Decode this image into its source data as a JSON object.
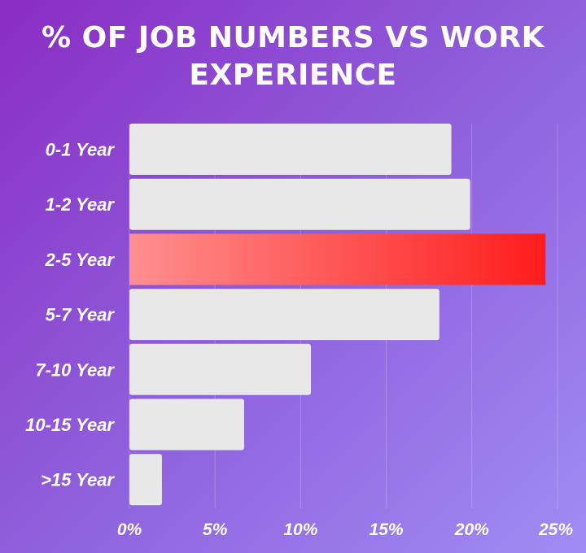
{
  "chart_data": {
    "type": "bar",
    "orientation": "horizontal",
    "title_lines": [
      "% OF JOB NUMBERS VS WORK",
      "EXPERIENCE"
    ],
    "categories": [
      "0-1 Year",
      "1-2 Year",
      "2-5 Year",
      "5-7 Year",
      "7-10 Year",
      "10-15 Year",
      ">15 Year"
    ],
    "values": [
      18.8,
      19.9,
      24.3,
      18.1,
      10.6,
      6.7,
      1.9
    ],
    "x_ticks": [
      "0%",
      "5%",
      "10%",
      "15%",
      "20%",
      "25%"
    ],
    "xlim": [
      0,
      25
    ],
    "highlight_index": 2,
    "grid": true,
    "colors": {
      "bar": "#e8e8e8",
      "highlight_start": "#ff8f8f",
      "highlight_end": "#ff1c1c",
      "text": "#ffffff"
    }
  }
}
